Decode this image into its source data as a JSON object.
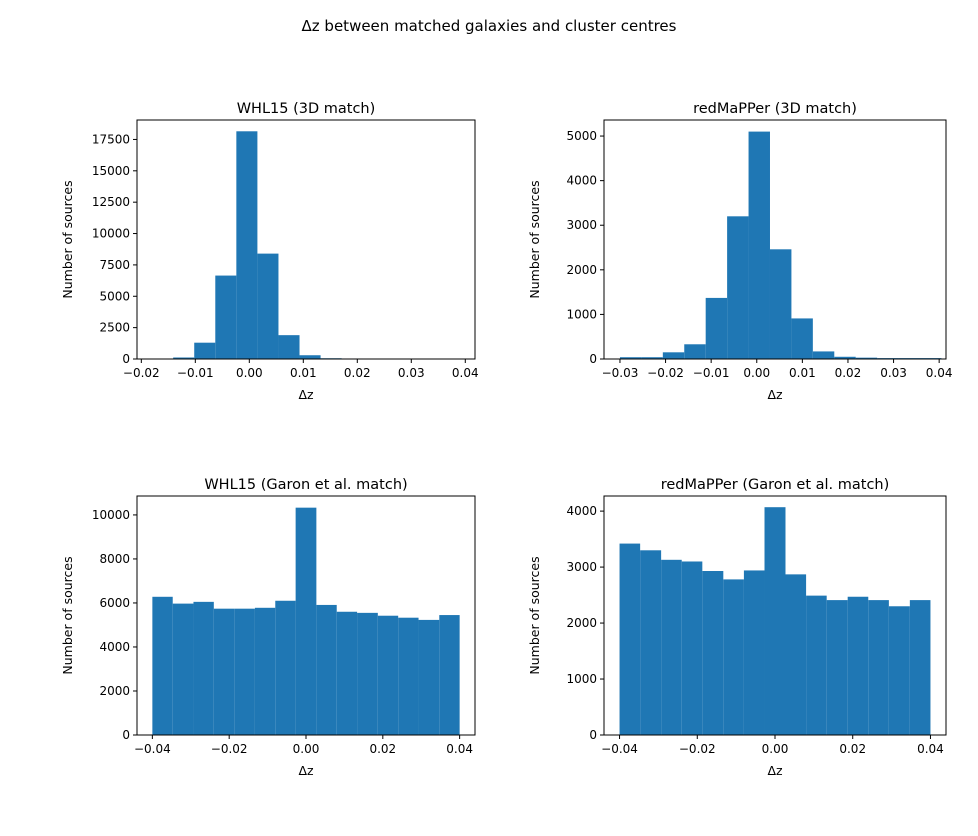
{
  "figure": {
    "suptitle": "Δz between matched galaxies and cluster centres"
  },
  "chart_data": [
    {
      "type": "bar",
      "title": "WHL15 (3D match)",
      "xlabel": "Δz",
      "ylabel": "Number of sources",
      "xlim": [
        -0.0208,
        0.0418
      ],
      "ylim": [
        0,
        19050
      ],
      "xticks": [
        -0.02,
        -0.01,
        0.0,
        0.01,
        0.02,
        0.03,
        0.04
      ],
      "xtick_labels": [
        "−0.02",
        "−0.01",
        "0.00",
        "0.01",
        "0.02",
        "0.03",
        "0.04"
      ],
      "yticks": [
        0,
        2500,
        5000,
        7500,
        10000,
        12500,
        15000,
        17500
      ],
      "ytick_labels": [
        "0",
        "2500",
        "5000",
        "7500",
        "10000",
        "12500",
        "15000",
        "17500"
      ],
      "bin_edges": [
        -0.018,
        -0.0141,
        -0.0102,
        -0.0063,
        -0.0024,
        0.0015,
        0.0054,
        0.0093,
        0.0132,
        0.0171,
        0.021,
        0.0249,
        0.0288,
        0.0327,
        0.0366,
        0.0405
      ],
      "values": [
        30,
        120,
        1300,
        6650,
        18150,
        8400,
        1900,
        300,
        60,
        40,
        30,
        20,
        20,
        15,
        10
      ],
      "color": "#1f77b4"
    },
    {
      "type": "bar",
      "title": "redMaPPer (3D match)",
      "xlabel": "Δz",
      "ylabel": "Number of sources",
      "xlim": [
        -0.0335,
        0.0415
      ],
      "ylim": [
        0,
        5360
      ],
      "xticks": [
        -0.03,
        -0.02,
        -0.01,
        0.0,
        0.01,
        0.02,
        0.03,
        0.04
      ],
      "xtick_labels": [
        "−0.03",
        "−0.02",
        "−0.01",
        "0.00",
        "0.01",
        "0.02",
        "0.03",
        "0.04"
      ],
      "yticks": [
        0,
        1000,
        2000,
        3000,
        4000,
        5000
      ],
      "ytick_labels": [
        "0",
        "1000",
        "2000",
        "3000",
        "4000",
        "5000"
      ],
      "bin_edges": [
        -0.03,
        -0.0253,
        -0.0206,
        -0.0159,
        -0.0112,
        -0.0065,
        -0.0018,
        0.0029,
        0.0076,
        0.0123,
        0.017,
        0.0217,
        0.0264,
        0.0311,
        0.0358,
        0.0405
      ],
      "values": [
        40,
        40,
        150,
        330,
        1370,
        3200,
        5100,
        2460,
        910,
        170,
        50,
        30,
        20,
        20,
        20
      ],
      "color": "#1f77b4"
    },
    {
      "type": "bar",
      "title": "WHL15 (Garon et al. match)",
      "xlabel": "Δz",
      "ylabel": "Number of sources",
      "xlim": [
        -0.044,
        0.044
      ],
      "ylim": [
        0,
        10860
      ],
      "xticks": [
        -0.04,
        -0.02,
        0.0,
        0.02,
        0.04
      ],
      "xtick_labels": [
        "−0.04",
        "−0.02",
        "0.00",
        "0.02",
        "0.04"
      ],
      "yticks": [
        0,
        2000,
        4000,
        6000,
        8000,
        10000
      ],
      "ytick_labels": [
        "0",
        "2000",
        "4000",
        "6000",
        "8000",
        "10000"
      ],
      "bin_edges": [
        -0.04,
        -0.0347,
        -0.0293,
        -0.024,
        -0.0187,
        -0.0133,
        -0.008,
        -0.0027,
        0.0027,
        0.008,
        0.0133,
        0.0187,
        0.024,
        0.0293,
        0.0347,
        0.04
      ],
      "values": [
        6280,
        5970,
        6050,
        5740,
        5740,
        5780,
        6100,
        10330,
        5910,
        5600,
        5550,
        5420,
        5330,
        5230,
        5450
      ],
      "color": "#1f77b4"
    },
    {
      "type": "bar",
      "title": "redMaPPer (Garon et al. match)",
      "xlabel": "Δz",
      "ylabel": "Number of sources",
      "xlim": [
        -0.044,
        0.044
      ],
      "ylim": [
        0,
        4270
      ],
      "xticks": [
        -0.04,
        -0.02,
        0.0,
        0.02,
        0.04
      ],
      "xtick_labels": [
        "−0.04",
        "−0.02",
        "0.00",
        "0.02",
        "0.04"
      ],
      "yticks": [
        0,
        1000,
        2000,
        3000,
        4000
      ],
      "ytick_labels": [
        "0",
        "1000",
        "2000",
        "3000",
        "4000"
      ],
      "bin_edges": [
        -0.04,
        -0.0347,
        -0.0293,
        -0.024,
        -0.0187,
        -0.0133,
        -0.008,
        -0.0027,
        0.0027,
        0.008,
        0.0133,
        0.0187,
        0.024,
        0.0293,
        0.0347,
        0.04
      ],
      "values": [
        3420,
        3300,
        3130,
        3100,
        2930,
        2780,
        2940,
        4070,
        2870,
        2490,
        2410,
        2470,
        2410,
        2300,
        2410
      ],
      "color": "#1f77b4"
    }
  ]
}
